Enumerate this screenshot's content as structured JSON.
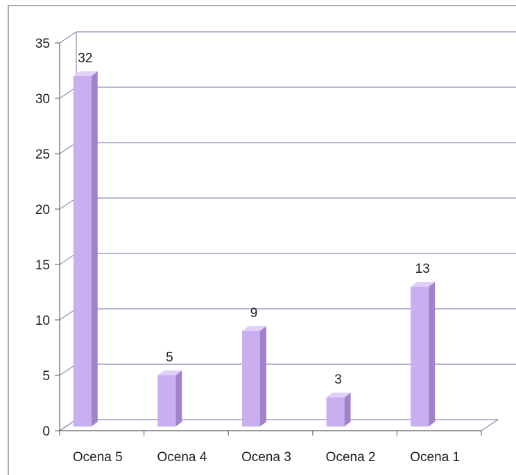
{
  "chart_data": {
    "type": "bar",
    "categories": [
      "Ocena 5",
      "Ocena 4",
      "Ocena 3",
      "Ocena 2",
      "Ocena 1"
    ],
    "values": [
      32,
      5,
      9,
      3,
      13
    ],
    "ylim": [
      0,
      35
    ],
    "yticks": [
      0,
      5,
      10,
      15,
      20,
      25,
      30,
      35
    ],
    "title": "",
    "xlabel": "",
    "ylabel": "",
    "grid": true,
    "legend": "none",
    "data_labels": true,
    "style": "3d-column"
  },
  "colors": {
    "bar_front": "#c9aef0",
    "bar_side": "#a382cc",
    "bar_top": "#e0cff8",
    "gridline": "#8d86b8",
    "axis": "#6e6e6e",
    "frame": "#8c8c8c"
  }
}
